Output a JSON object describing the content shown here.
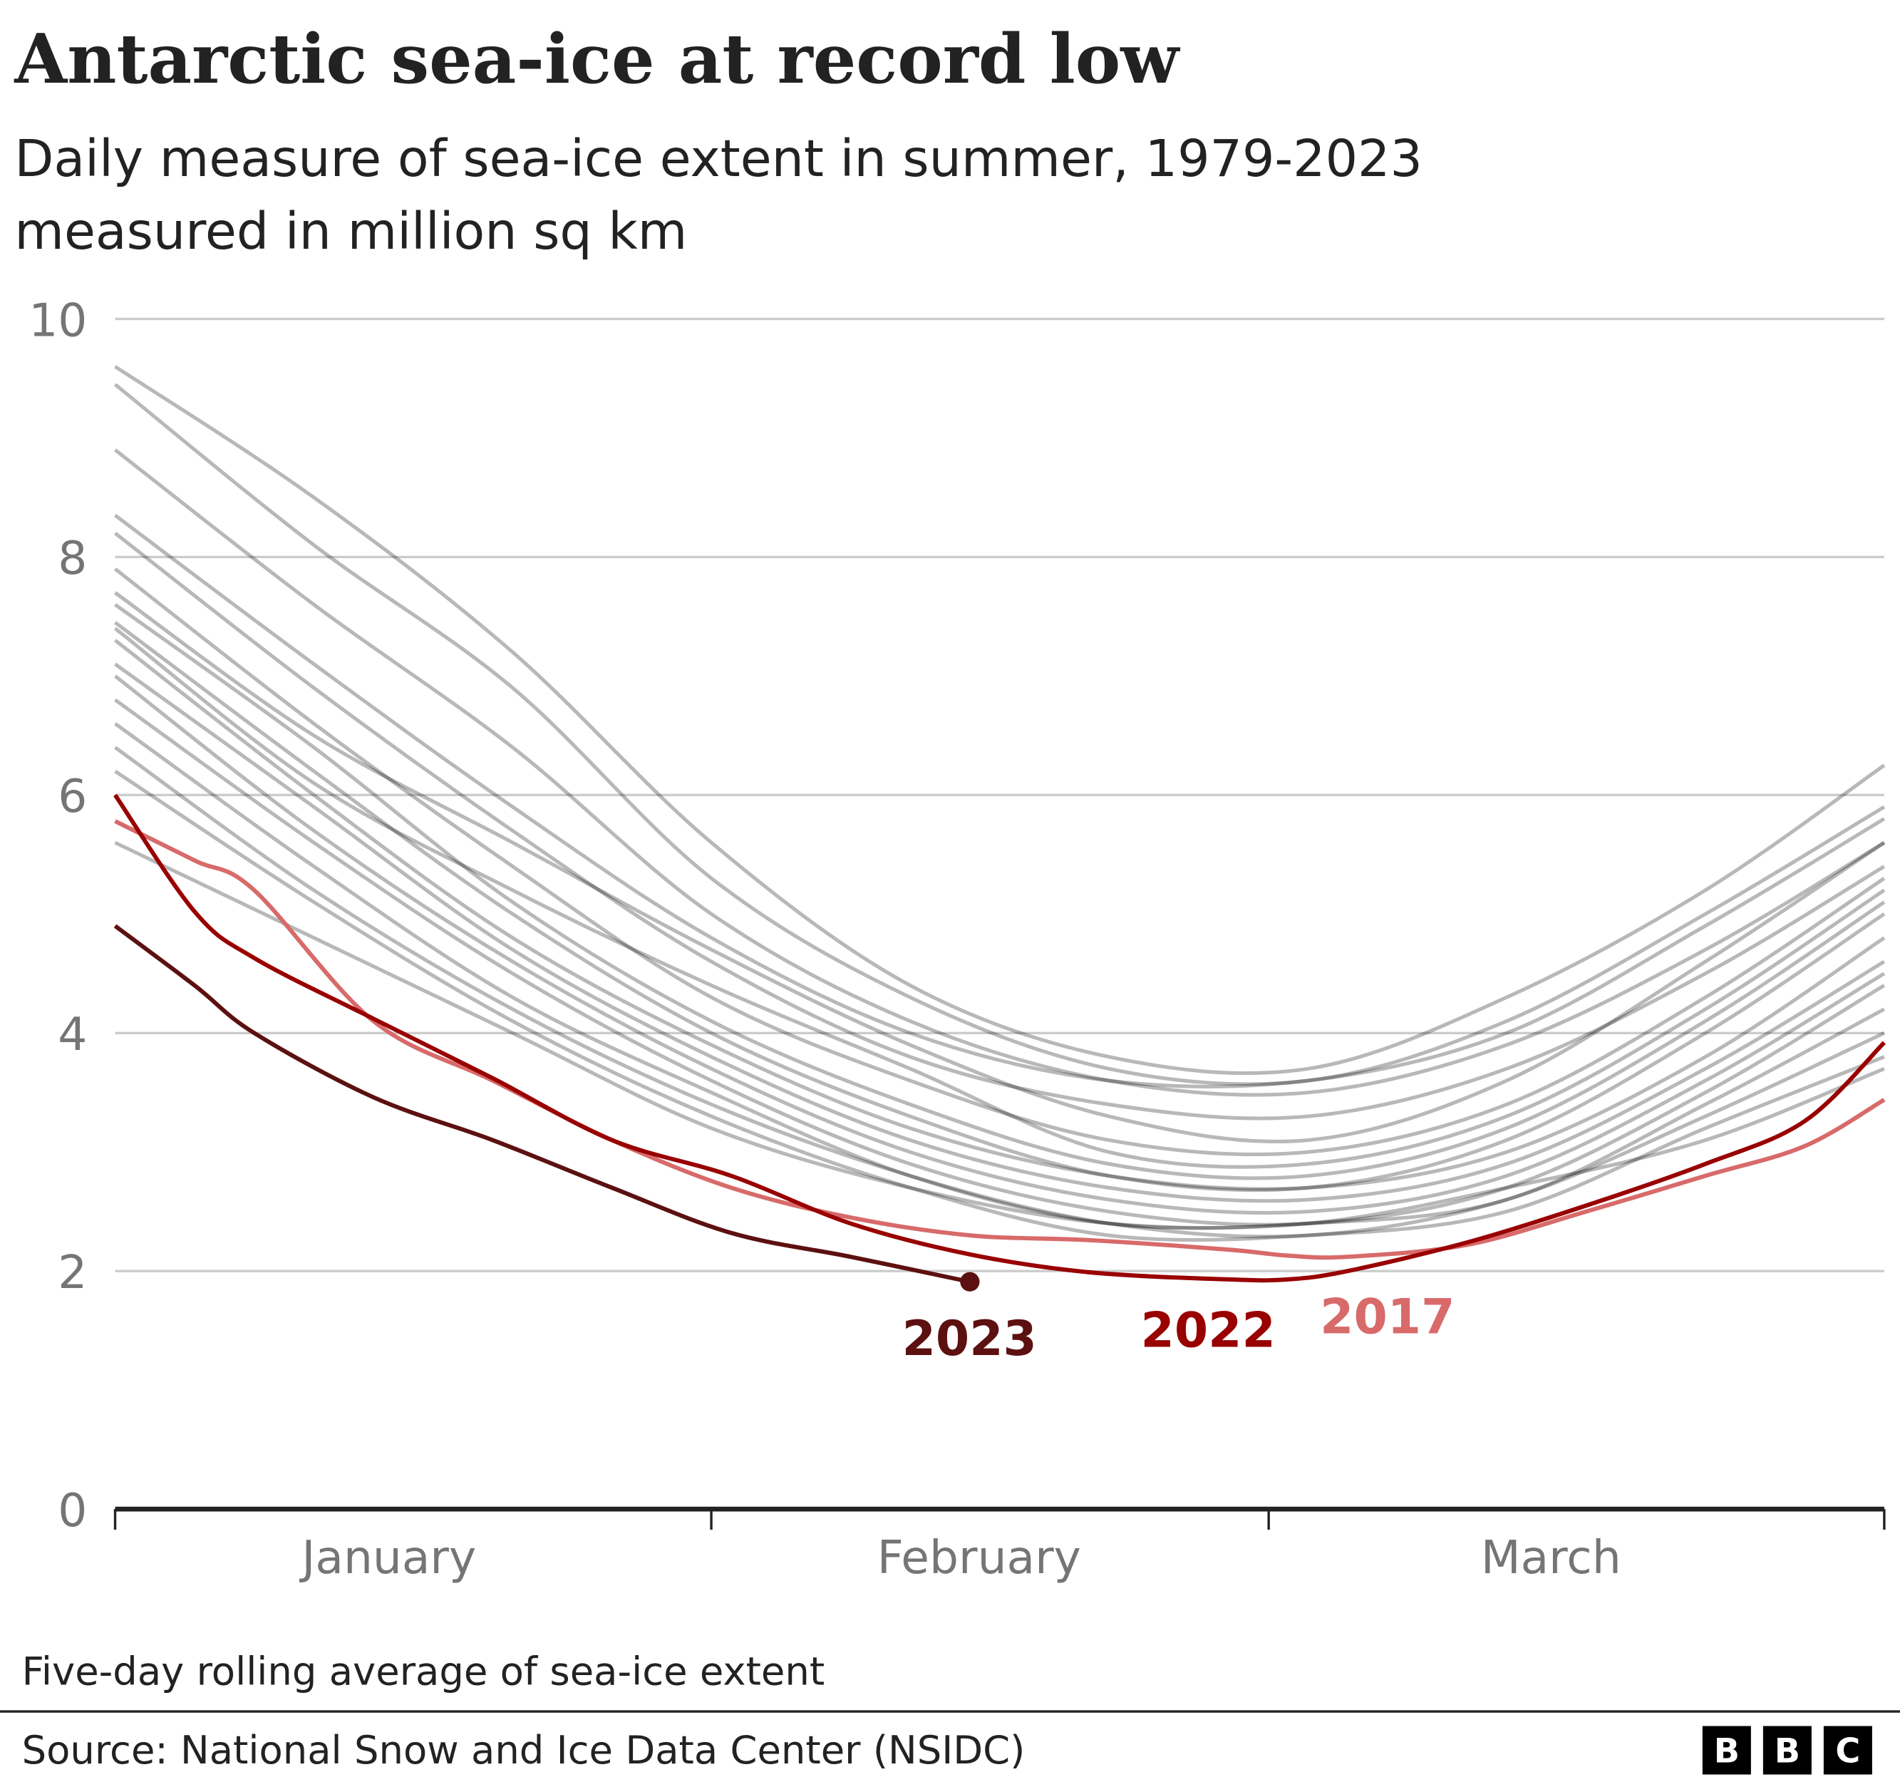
{
  "title": "Antarctic sea-ice at record low",
  "subtitle_line1": "Daily measure of sea-ice extent in summer, 1979-2023",
  "subtitle_line2": "measured in million sq km",
  "note": "Five-day rolling average of sea-ice extent",
  "source": "Source: National Snow and Ice Data Center (NSIDC)",
  "logo": [
    "B",
    "B",
    "C"
  ],
  "chart_data": {
    "type": "line",
    "title": "Antarctic sea-ice at record low",
    "ylabel": "",
    "xlabel": "",
    "ylim": [
      0,
      10
    ],
    "yticks": [
      "0",
      "2",
      "4",
      "6",
      "8",
      "10"
    ],
    "ytick_values": [
      0,
      2,
      4,
      6,
      8,
      10
    ],
    "xticks": [
      "January",
      "February",
      "March"
    ],
    "grid": true,
    "colors": {
      "background_years": "#9a9a9a",
      "y2023": "#5c1010",
      "y2022": "#990000",
      "y2017": "#d86a6a"
    },
    "x": [
      "Jan 1",
      "Jan 11",
      "Jan 21",
      "Jan 31",
      "Feb 10",
      "Feb 20",
      "Mar 2",
      "Mar 12",
      "Mar 22",
      "Mar 31"
    ],
    "background_series": [
      [
        9.6,
        8.5,
        7.2,
        5.6,
        4.4,
        3.8,
        3.7,
        4.3,
        5.2,
        6.25
      ],
      [
        9.45,
        8.1,
        6.9,
        5.3,
        4.3,
        3.7,
        3.6,
        4.1,
        5.0,
        5.9
      ],
      [
        8.9,
        7.6,
        6.4,
        5.0,
        4.1,
        3.6,
        3.5,
        3.9,
        4.7,
        5.6
      ],
      [
        8.35,
        7.1,
        5.9,
        4.8,
        4.0,
        3.6,
        3.6,
        4.0,
        4.9,
        5.8
      ],
      [
        8.2,
        6.9,
        5.7,
        4.6,
        3.8,
        3.4,
        3.3,
        3.7,
        4.5,
        5.4
      ],
      [
        7.9,
        6.6,
        5.4,
        4.3,
        3.6,
        3.1,
        3.0,
        3.4,
        4.3,
        5.3
      ],
      [
        7.6,
        6.4,
        5.1,
        4.1,
        3.4,
        2.9,
        2.8,
        3.2,
        4.1,
        5.1
      ],
      [
        7.45,
        6.2,
        5.0,
        4.0,
        3.3,
        2.8,
        2.7,
        3.1,
        4.0,
        5.0
      ],
      [
        7.3,
        6.0,
        4.8,
        3.9,
        3.2,
        2.8,
        2.7,
        3.0,
        3.8,
        4.8
      ],
      [
        7.1,
        5.9,
        4.7,
        3.8,
        3.1,
        2.7,
        2.6,
        2.9,
        3.7,
        4.6
      ],
      [
        7.0,
        5.7,
        4.6,
        3.7,
        3.0,
        2.6,
        2.5,
        2.8,
        3.6,
        4.5
      ],
      [
        6.8,
        5.6,
        4.5,
        3.6,
        2.9,
        2.5,
        2.4,
        2.7,
        3.5,
        4.4
      ],
      [
        6.6,
        5.4,
        4.3,
        3.5,
        2.8,
        2.4,
        2.4,
        2.6,
        3.4,
        4.2
      ],
      [
        6.4,
        5.2,
        4.2,
        3.4,
        2.8,
        2.4,
        2.3,
        2.6,
        3.3,
        4.0
      ],
      [
        6.2,
        5.1,
        4.1,
        3.3,
        2.7,
        2.3,
        2.3,
        2.5,
        3.2,
        3.8
      ],
      [
        5.6,
        4.8,
        4.0,
        3.2,
        2.7,
        2.4,
        2.4,
        2.7,
        3.1,
        3.7
      ],
      [
        7.7,
        6.5,
        5.6,
        4.7,
        3.9,
        3.3,
        3.1,
        3.6,
        4.6,
        5.6
      ],
      [
        7.4,
        6.1,
        5.2,
        4.4,
        3.7,
        3.0,
        2.9,
        3.3,
        4.2,
        5.2
      ]
    ],
    "highlighted_series": [
      {
        "name": "2023",
        "color": "#5c1010",
        "x": [
          "Jan 1",
          "Jan 5",
          "Jan 8",
          "Jan 14",
          "Jan 20",
          "Jan 26",
          "Feb 1",
          "Feb 7",
          "Feb 13"
        ],
        "values": [
          4.9,
          4.4,
          4.0,
          3.46,
          3.1,
          2.7,
          2.32,
          2.12,
          1.91
        ]
      },
      {
        "name": "2022",
        "color": "#990000",
        "x": [
          "Jan 1",
          "Jan 5",
          "Jan 8",
          "Jan 14",
          "Jan 20",
          "Jan 26",
          "Feb 1",
          "Feb 7",
          "Feb 13",
          "Feb 19",
          "Feb 26",
          "Mar 1",
          "Mar 4",
          "Mar 10",
          "Mar 16",
          "Mar 22",
          "Mar 27",
          "Mar 31"
        ],
        "values": [
          6.0,
          5.02,
          4.63,
          4.12,
          3.62,
          3.1,
          2.8,
          2.4,
          2.14,
          1.99,
          1.93,
          1.93,
          2.0,
          2.24,
          2.55,
          2.9,
          3.26,
          3.92
        ]
      },
      {
        "name": "2017",
        "color": "#d86a6a",
        "x": [
          "Jan 1",
          "Jan 5",
          "Jan 8",
          "Jan 14",
          "Jan 20",
          "Jan 26",
          "Feb 1",
          "Feb 7",
          "Feb 13",
          "Feb 19",
          "Feb 26",
          "Mar 1",
          "Mar 4",
          "Mar 10",
          "Mar 16",
          "Mar 22",
          "Mar 27",
          "Mar 31"
        ],
        "values": [
          5.78,
          5.45,
          5.2,
          4.1,
          3.6,
          3.1,
          2.7,
          2.45,
          2.3,
          2.26,
          2.18,
          2.13,
          2.12,
          2.22,
          2.5,
          2.8,
          3.05,
          3.44
        ]
      }
    ]
  }
}
